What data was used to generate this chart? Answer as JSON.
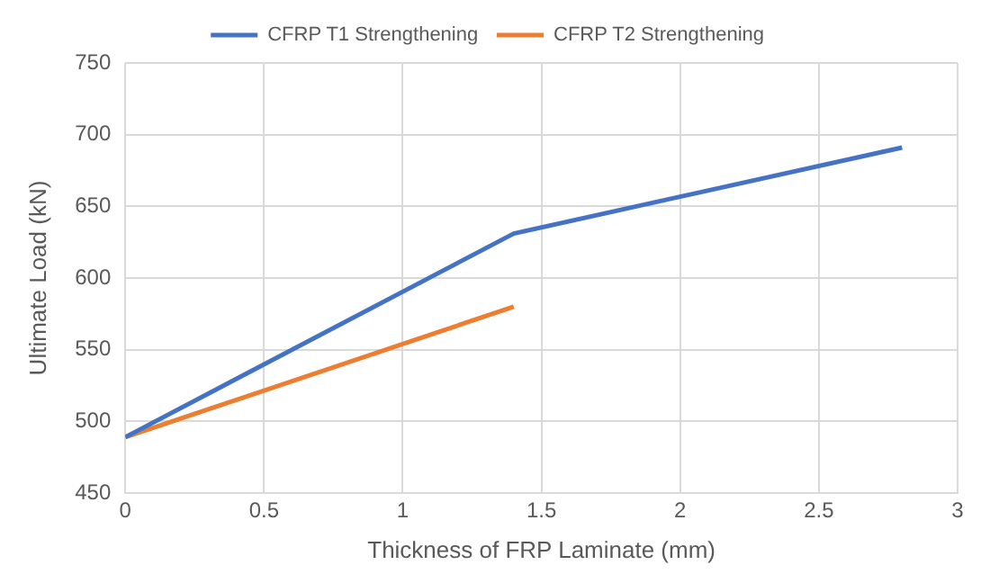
{
  "chart_data": {
    "type": "line",
    "xlabel": "Thickness of FRP Laminate (mm)",
    "ylabel": "Ultimate Load (kN)",
    "series": [
      {
        "name": "CFRP T1 Strengthening",
        "color": "#4472c4",
        "x": [
          0,
          1.4,
          2.8
        ],
        "values": [
          489,
          631,
          691
        ]
      },
      {
        "name": "CFRP T2 Strengthening",
        "color": "#ed7d31",
        "x": [
          0,
          1.4
        ],
        "values": [
          489,
          580
        ]
      }
    ],
    "xlim": [
      0,
      3
    ],
    "xticks": [
      0,
      0.5,
      1,
      1.5,
      2,
      2.5,
      3
    ],
    "ylim": [
      450,
      750
    ],
    "yticks": [
      450,
      500,
      550,
      600,
      650,
      700,
      750
    ],
    "grid": true,
    "legend": "top",
    "marker": "none",
    "line_style": "solid"
  }
}
